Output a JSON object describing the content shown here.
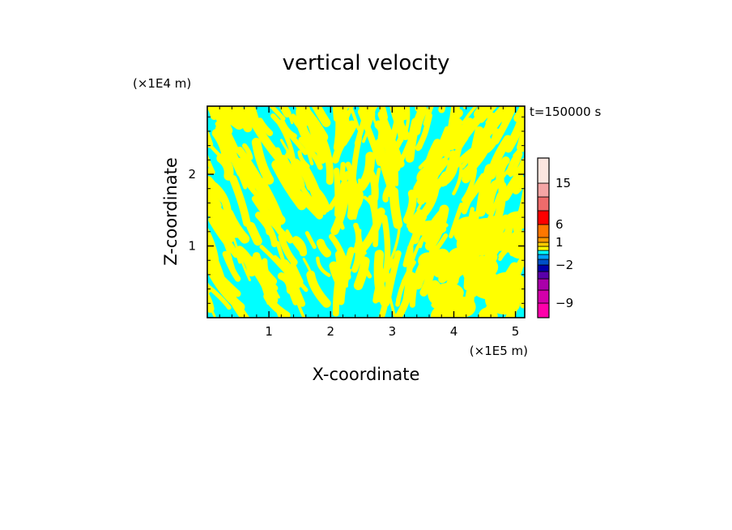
{
  "chart_data": {
    "type": "heatmap",
    "title": "vertical velocity",
    "xlabel": "X-coordinate",
    "ylabel": "Z-coordinate",
    "x_unit": "(×1E5 m)",
    "y_unit": "(×1E4 m)",
    "time_label": "t=150000 s",
    "xlim": [
      0,
      5.15
    ],
    "ylim": [
      0,
      2.95
    ],
    "x_ticks": [
      {
        "value": 1,
        "label": "1"
      },
      {
        "value": 2,
        "label": "2"
      },
      {
        "value": 3,
        "label": "3"
      },
      {
        "value": 4,
        "label": "4"
      },
      {
        "value": 5,
        "label": "5"
      }
    ],
    "y_ticks": [
      {
        "value": 1,
        "label": "1"
      },
      {
        "value": 2,
        "label": "2"
      }
    ],
    "field_colors": {
      "negative": "#00ffff",
      "positive": "#ffff00"
    },
    "colorbar": {
      "levels": [
        {
          "from": -12,
          "to": -9,
          "color": "#ff00aa"
        },
        {
          "from": -9,
          "to": -6,
          "color": "#d400aa"
        },
        {
          "from": -6,
          "to": -4,
          "color": "#aa00aa"
        },
        {
          "from": -4,
          "to": -3,
          "color": "#5a00aa"
        },
        {
          "from": -3,
          "to": -2,
          "color": "#0000aa"
        },
        {
          "from": -2,
          "to": -1.5,
          "color": "#0050c8"
        },
        {
          "from": -1.5,
          "to": -1,
          "color": "#00a0ff"
        },
        {
          "from": -1,
          "to": 0,
          "color": "#00ffff"
        },
        {
          "from": 0,
          "to": 0.5,
          "color": "#ffff00"
        },
        {
          "from": 0.5,
          "to": 1,
          "color": "#ffcc00"
        },
        {
          "from": 1,
          "to": 2,
          "color": "#ff9900"
        },
        {
          "from": 2,
          "to": 6,
          "color": "#ff7700"
        },
        {
          "from": 6,
          "to": 9,
          "color": "#ff0000"
        },
        {
          "from": 9,
          "to": 12,
          "color": "#ee6b6b"
        },
        {
          "from": 12,
          "to": 15,
          "color": "#f4a5a5"
        },
        {
          "from": 15,
          "to": 20,
          "color": "#fce6e0"
        }
      ],
      "labels": [
        {
          "value": 15,
          "label": "15"
        },
        {
          "value": 6,
          "label": "6"
        },
        {
          "value": 1,
          "label": "1"
        },
        {
          "value": -2,
          "label": "−2"
        },
        {
          "value": -9,
          "label": "−9"
        }
      ]
    }
  }
}
